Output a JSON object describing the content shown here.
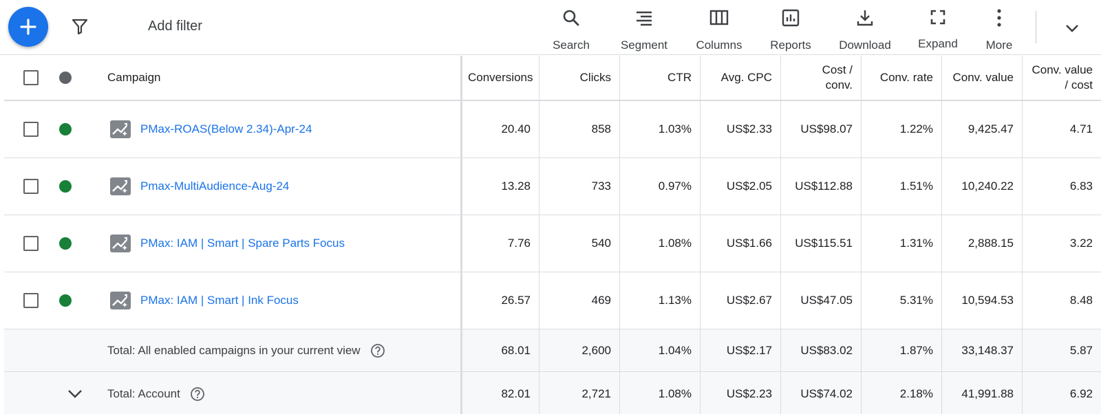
{
  "toolbar": {
    "add_filter": "Add filter",
    "tools": [
      {
        "label": "Search",
        "icon": "search-icon"
      },
      {
        "label": "Segment",
        "icon": "segment-icon"
      },
      {
        "label": "Columns",
        "icon": "columns-icon"
      },
      {
        "label": "Reports",
        "icon": "reports-icon"
      },
      {
        "label": "Download",
        "icon": "download-icon"
      },
      {
        "label": "Expand",
        "icon": "expand-icon"
      },
      {
        "label": "More",
        "icon": "more-vert-icon"
      }
    ]
  },
  "table": {
    "headers": {
      "campaign": "Campaign",
      "conversions": "Conversions",
      "clicks": "Clicks",
      "ctr": "CTR",
      "avg_cpc": "Avg. CPC",
      "cost_conv_1": "Cost /",
      "cost_conv_2": "conv.",
      "conv_rate": "Conv. rate",
      "conv_value": "Conv. value",
      "value_cost_1": "Conv. value",
      "value_cost_2": "/ cost"
    },
    "rows": [
      {
        "name": "PMax-ROAS(Below 2.34)-Apr-24",
        "conversions": "20.40",
        "clicks": "858",
        "ctr": "1.03%",
        "avg_cpc": "US$2.33",
        "cost_conv": "US$98.07",
        "conv_rate": "1.22%",
        "conv_value": "9,425.47",
        "value_cost": "4.71"
      },
      {
        "name": "Pmax-MultiAudience-Aug-24",
        "conversions": "13.28",
        "clicks": "733",
        "ctr": "0.97%",
        "avg_cpc": "US$2.05",
        "cost_conv": "US$112.88",
        "conv_rate": "1.51%",
        "conv_value": "10,240.22",
        "value_cost": "6.83"
      },
      {
        "name": "PMax: IAM | Smart | Spare Parts Focus",
        "conversions": "7.76",
        "clicks": "540",
        "ctr": "1.08%",
        "avg_cpc": "US$1.66",
        "cost_conv": "US$115.51",
        "conv_rate": "1.31%",
        "conv_value": "2,888.15",
        "value_cost": "3.22"
      },
      {
        "name": "PMax: IAM | Smart | Ink Focus",
        "conversions": "26.57",
        "clicks": "469",
        "ctr": "1.13%",
        "avg_cpc": "US$2.67",
        "cost_conv": "US$47.05",
        "conv_rate": "5.31%",
        "conv_value": "10,594.53",
        "value_cost": "8.48"
      }
    ],
    "totals": [
      {
        "label": "Total: All enabled campaigns in your current view",
        "conversions": "68.01",
        "clicks": "2,600",
        "ctr": "1.04%",
        "avg_cpc": "US$2.17",
        "cost_conv": "US$83.02",
        "conv_rate": "1.87%",
        "conv_value": "33,148.37",
        "value_cost": "5.87"
      },
      {
        "label": "Total: Account",
        "conversions": "82.01",
        "clicks": "2,721",
        "ctr": "1.08%",
        "avg_cpc": "US$2.23",
        "cost_conv": "US$74.02",
        "conv_rate": "2.18%",
        "conv_value": "41,991.88",
        "value_cost": "6.92"
      }
    ]
  },
  "colors": {
    "accent": "#1a73e8",
    "status_enabled": "#188038",
    "status_header": "#5f6368",
    "total_row_bg": "#f6f8fa"
  }
}
